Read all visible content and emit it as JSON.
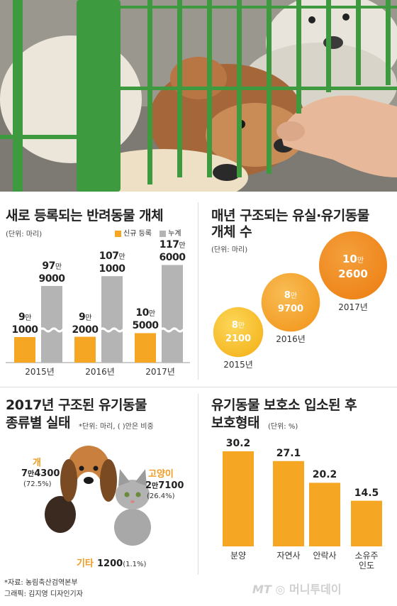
{
  "colors": {
    "orange": "#F5A623",
    "gray": "#B4B4B4",
    "bubble_light": "#F8C62E",
    "bubble_mid": "#F5A12A",
    "bubble_dark": "#F08A1C",
    "accent_text": "#F29A1F"
  },
  "panel1": {
    "title": "새로 등록되는 반려동물 개체",
    "unit": "(단위: 마리)",
    "legend_new": "신규 등록",
    "legend_cum": "누계",
    "labels": [
      {
        "year": "2015년",
        "new_top": "9",
        "new_bottom": "1000",
        "cum_top": "97",
        "cum_bottom": "9000"
      },
      {
        "year": "2016년",
        "new_top": "9",
        "new_bottom": "2000",
        "cum_top": "107",
        "cum_bottom": "1000"
      },
      {
        "year": "2017년",
        "new_top": "10",
        "new_bottom": "5000",
        "cum_top": "117",
        "cum_bottom": "6000"
      }
    ],
    "man": "만"
  },
  "panel2": {
    "title_line1": "매년 구조되는 유실·유기동물",
    "title_line2": "개체 수",
    "unit": "(단위: 마리)",
    "bubbles": [
      {
        "year": "2015년",
        "top": "8",
        "bottom": "2100"
      },
      {
        "year": "2016년",
        "top": "8",
        "bottom": "9700"
      },
      {
        "year": "2017년",
        "top": "10",
        "bottom": "2600"
      }
    ],
    "man": "만"
  },
  "panel3": {
    "title_line1": "2017년 구조된 유기동물",
    "title_line2": "종류별 실태",
    "unit": "*단위: 마리, (  )안은 비중",
    "dog": {
      "name": "개",
      "value_top": "7",
      "value_bottom": "4300",
      "pct": "(72.5%)"
    },
    "cat": {
      "name": "고양이",
      "value_top": "2",
      "value_bottom": "7100",
      "pct": "(26.4%)"
    },
    "etc": {
      "name": "기타",
      "value": "1200",
      "pct": "(1.1%)"
    },
    "man": "만"
  },
  "panel4": {
    "title_line1": "유기동물 보호소 입소된 후",
    "title_line2": "보호형태",
    "unit": "(단위: %)"
  },
  "footer": {
    "source": "*자료: 농림축산검역본부",
    "graphic": "그래픽: 김지영 디자인기자",
    "brand_mt": "MT",
    "brand_name": "머니투데이"
  },
  "chart_data": [
    {
      "type": "bar",
      "title": "새로 등록되는 반려동물 개체",
      "categories": [
        "2015년",
        "2016년",
        "2017년"
      ],
      "series": [
        {
          "name": "신규 등록",
          "values": [
            91000,
            92000,
            105000
          ]
        },
        {
          "name": "누계",
          "values": [
            979000,
            1071000,
            1176000
          ]
        }
      ],
      "unit": "마리",
      "axis_break": true
    },
    {
      "type": "scatter",
      "title": "매년 구조되는 유실·유기동물 개체 수",
      "categories": [
        "2015년",
        "2016년",
        "2017년"
      ],
      "values": [
        82100,
        89700,
        102600
      ],
      "unit": "마리"
    },
    {
      "type": "pie",
      "title": "2017년 구조된 유기동물 종류별 실태",
      "categories": [
        "개",
        "고양이",
        "기타"
      ],
      "values": [
        74300,
        27100,
        1200
      ],
      "shares": [
        72.5,
        26.4,
        1.1
      ],
      "unit": "마리"
    },
    {
      "type": "bar",
      "title": "유기동물 보호소 입소된 후 보호형태",
      "categories": [
        "분양",
        "자연사",
        "안락사",
        "소유주 인도"
      ],
      "values": [
        30.2,
        27.1,
        20.2,
        14.5
      ],
      "unit": "%"
    }
  ]
}
